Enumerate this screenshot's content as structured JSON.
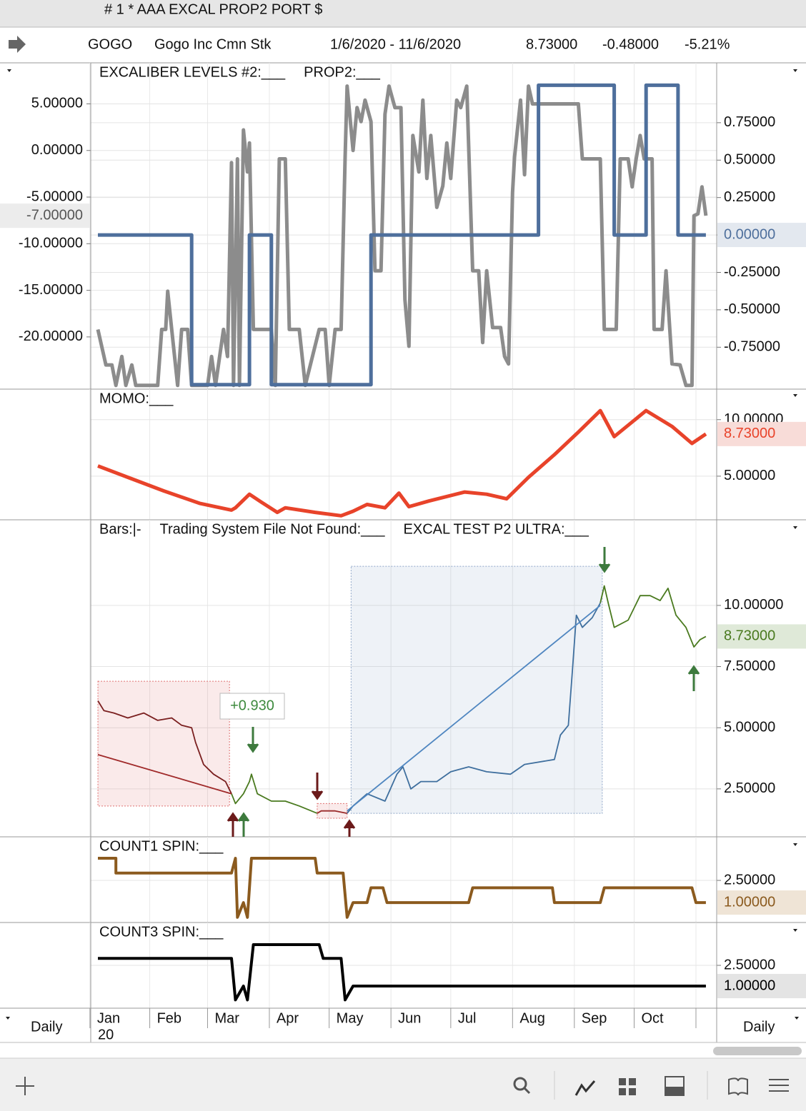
{
  "window": {
    "title": "# 1 * AAA EXCAL PROP2 PORT $"
  },
  "symbol_bar": {
    "symbol": "GOGO",
    "name": "Gogo Inc Cmn Stk",
    "range": "1/6/2020 - 11/6/2020",
    "last": "8.73000",
    "change": "-0.48000",
    "change_pct": "-5.21%"
  },
  "time_axis": {
    "xlim": [
      -3.6,
      310.4
    ],
    "xticks": [
      {
        "value": -4,
        "label": "Jan"
      },
      {
        "value": 26,
        "label": "Feb"
      },
      {
        "value": 55,
        "label": "Mar"
      },
      {
        "value": 86,
        "label": "Apr"
      },
      {
        "value": 116,
        "label": "May"
      },
      {
        "value": 147,
        "label": "Jun"
      },
      {
        "value": 177,
        "label": "Jul"
      },
      {
        "value": 208,
        "label": "Aug"
      },
      {
        "value": 239,
        "label": "Sep"
      },
      {
        "value": 269,
        "label": "Oct"
      },
      {
        "value": 300,
        "label": null
      }
    ],
    "year_label": "20",
    "period": "Daily"
  },
  "chart_data": [
    {
      "type": "line",
      "titles": [
        "EXCALIBER LEVELS #2:___",
        "PROP2:___"
      ],
      "yaxis": "left",
      "grid": true,
      "ylim": [
        -25.6,
        9.4
      ],
      "yticks": [
        {
          "value": 5,
          "label": "5.00000"
        },
        {
          "value": 0,
          "label": "0.00000"
        },
        {
          "value": -5,
          "label": "-5.00000"
        },
        {
          "value": -10,
          "label": "-10.00000"
        },
        {
          "value": -15,
          "label": "-15.00000"
        },
        {
          "value": -20,
          "label": "-20.00000"
        }
      ],
      "y2lim": [
        -1.03,
        1.15
      ],
      "y2ticks": [
        {
          "value": 0.75,
          "label": "0.75000"
        },
        {
          "value": 0.5,
          "label": "0.50000"
        },
        {
          "value": 0.25,
          "label": "0.25000"
        },
        {
          "value": 0,
          "label": "0.00000"
        },
        {
          "value": -0.25,
          "label": "-0.25000"
        },
        {
          "value": -0.5,
          "label": "-0.50000"
        },
        {
          "value": -0.75,
          "label": "-0.75000"
        }
      ],
      "series": [
        {
          "color": "#8c8c8c",
          "last_label": "-7.00000",
          "label_fill": "#ececec",
          "x": [
            0,
            4,
            7,
            9,
            12,
            14,
            17,
            19,
            30,
            32,
            34,
            35,
            37,
            40,
            42,
            45,
            47,
            55,
            57,
            59,
            63,
            65,
            67,
            68,
            70,
            71,
            73,
            74,
            75,
            76,
            78,
            87,
            89,
            91,
            94,
            96,
            101,
            104,
            111,
            114,
            116,
            119,
            122,
            124,
            125,
            128,
            130,
            132,
            134,
            137,
            139,
            142,
            144,
            146,
            149,
            152,
            154,
            156,
            158,
            161,
            163,
            165,
            167,
            170,
            173,
            175,
            177,
            180,
            182,
            185,
            188,
            191,
            193,
            195,
            198,
            202,
            204,
            206,
            208,
            209,
            212,
            214,
            216,
            218,
            241,
            243,
            252,
            254,
            260,
            262,
            266,
            268,
            270,
            272,
            274,
            278,
            279,
            283,
            285,
            288,
            292,
            295,
            298,
            299,
            301,
            303,
            305
          ],
          "values": [
            -19.2,
            -23.0,
            -23.0,
            -25.2,
            -22.1,
            -25.2,
            -23.0,
            -25.2,
            -25.2,
            -19.2,
            -19.2,
            -15.1,
            -19.2,
            -25.2,
            -19.2,
            -19.2,
            -25.2,
            -25.2,
            -22.1,
            -25.2,
            -19.2,
            -22.1,
            -1.3,
            -25.2,
            -0.9,
            -25.2,
            2.2,
            0.0,
            -2.3,
            0.8,
            -19.2,
            -19.2,
            -25.2,
            -0.9,
            -0.9,
            -19.2,
            -19.2,
            -25.2,
            -19.2,
            -19.2,
            -25.2,
            -19.2,
            -19.2,
            -0.7,
            6.9,
            0.0,
            4.6,
            3.1,
            5.4,
            3.1,
            -12.9,
            -12.9,
            3.9,
            6.9,
            4.6,
            4.6,
            -16.0,
            -21.0,
            1.6,
            -2.3,
            5.4,
            -3.0,
            1.6,
            -6.1,
            -3.8,
            0.8,
            -3.0,
            5.4,
            4.6,
            6.9,
            -12.9,
            -12.9,
            -20.6,
            -12.9,
            -19.0,
            -19.0,
            -22.1,
            -22.9,
            -4.5,
            -0.7,
            5.4,
            -2.6,
            6.9,
            5.0,
            5.0,
            -0.9,
            -0.9,
            -19.2,
            -19.2,
            -0.9,
            -0.9,
            -3.9,
            -0.9,
            1.6,
            -0.9,
            -0.9,
            -19.2,
            -19.2,
            -12.9,
            -22.9,
            -23.0,
            -25.2,
            -25.2,
            -7.0,
            -6.8,
            -3.9,
            -7.0
          ]
        },
        {
          "color": "#4e6f9c",
          "axis": "y2",
          "last_label": "0.00000",
          "label_fill": "#e3e8ef",
          "x": [
            0,
            47,
            47,
            76,
            76,
            87,
            87,
            137,
            137,
            221,
            221,
            259,
            259,
            275,
            275,
            291,
            291,
            305
          ],
          "values": [
            0,
            0,
            -1,
            -1,
            0,
            0,
            -1,
            -1,
            0,
            0,
            1,
            1,
            0,
            0,
            1,
            1,
            0,
            0
          ]
        }
      ]
    },
    {
      "type": "line",
      "titles": [
        "MOMO:___"
      ],
      "yaxis": "right",
      "grid": true,
      "ylim": [
        1.14,
        12.7
      ],
      "yticks": [
        {
          "value": 10,
          "label": "10.00000"
        },
        {
          "value": 5,
          "label": "5.00000"
        }
      ],
      "series": [
        {
          "color": "#e8432a",
          "last_label": "8.73000",
          "label_fill": "#f8dcd8",
          "x": [
            0,
            15,
            33,
            51,
            67,
            69,
            76,
            82,
            90,
            94,
            109,
            122,
            128,
            135,
            144,
            151,
            156,
            166,
            184,
            195,
            205,
            216,
            229,
            241,
            252,
            259,
            275,
            288,
            298,
            305
          ],
          "values": [
            5.9,
            4.9,
            3.7,
            2.6,
            2.0,
            2.2,
            3.4,
            2.7,
            1.8,
            2.2,
            1.8,
            1.5,
            1.9,
            2.5,
            2.2,
            3.5,
            2.3,
            2.8,
            3.6,
            3.4,
            3.0,
            4.9,
            6.9,
            8.9,
            10.8,
            8.5,
            10.8,
            9.4,
            7.9,
            8.73
          ]
        }
      ]
    },
    {
      "type": "line",
      "titles": [
        "Bars:|-",
        "Trading System File Not Found:___",
        "EXCAL TEST P2 ULTRA:___"
      ],
      "yaxis": "right",
      "grid": true,
      "ylim": [
        0.54,
        13.5
      ],
      "yticks": [
        {
          "value": 10,
          "label": "10.00000"
        },
        {
          "value": 7.5,
          "label": "7.50000"
        },
        {
          "value": 5,
          "label": "5.00000"
        },
        {
          "value": 2.5,
          "label": "2.50000"
        }
      ],
      "annotation": "+0.930",
      "boxes": [
        {
          "x": [
            0,
            66
          ],
          "y": [
            1.8,
            6.9
          ],
          "color": "#e07070"
        },
        {
          "x": [
            127,
            253
          ],
          "y": [
            1.5,
            11.6
          ],
          "color": "#8fa6c8"
        },
        {
          "x": [
            110,
            125
          ],
          "y": [
            1.3,
            1.9
          ],
          "color": "#e07070"
        }
      ],
      "series": [
        {
          "color": "#7a1f1f",
          "x": [
            0,
            3,
            8,
            15,
            23,
            30,
            37,
            42,
            47,
            49,
            53,
            58,
            64,
            67
          ],
          "values": [
            6.1,
            5.7,
            5.6,
            5.4,
            5.6,
            5.3,
            5.4,
            5.1,
            5.0,
            4.4,
            3.5,
            3.1,
            2.8,
            2.3
          ]
        },
        {
          "color": "#4a7a1f",
          "x": [
            67,
            69,
            73,
            76,
            77,
            80,
            87,
            94,
            101,
            110
          ],
          "values": [
            2.3,
            1.9,
            2.3,
            2.8,
            3.1,
            2.3,
            2.0,
            2.0,
            1.8,
            1.5
          ]
        },
        {
          "color": "#9a2a2a",
          "x": [
            110,
            112,
            119,
            125
          ],
          "values": [
            1.5,
            1.6,
            1.6,
            1.5
          ]
        },
        {
          "color": "#3f6f9e",
          "x": [
            125,
            128,
            135,
            144,
            150,
            153,
            157,
            162,
            170,
            177,
            186,
            195,
            207,
            214,
            229,
            232,
            236,
            238,
            240,
            243,
            248,
            252
          ],
          "values": [
            1.5,
            1.8,
            2.3,
            2.0,
            3.1,
            3.4,
            2.5,
            2.8,
            2.8,
            3.2,
            3.4,
            3.2,
            3.1,
            3.5,
            3.7,
            4.7,
            5.1,
            7.3,
            9.6,
            9.1,
            9.5,
            10.1
          ]
        },
        {
          "color": "#4a7a1f",
          "last_label": "8.73000",
          "label_fill": "#dfe9d8",
          "x": [
            252,
            254,
            256,
            259,
            266,
            272,
            277,
            282,
            286,
            290,
            295,
            299,
            302,
            305
          ],
          "values": [
            10.1,
            10.8,
            10.1,
            9.1,
            9.4,
            10.4,
            10.4,
            10.2,
            10.7,
            9.6,
            9.1,
            8.3,
            8.6,
            8.73
          ]
        },
        {
          "color": "#a02a2a",
          "x": [
            0,
            67
          ],
          "values": [
            3.9,
            2.3
          ]
        },
        {
          "color": "#4f86c0",
          "x": [
            125,
            252
          ],
          "values": [
            1.6,
            10.0
          ]
        }
      ]
    },
    {
      "type": "line",
      "titles": [
        "COUNT1 SPIN:___"
      ],
      "yaxis": "right",
      "grid": true,
      "ylim": [
        -0.35,
        5.45
      ],
      "yticks": [
        {
          "value": 2.5,
          "label": "2.50000"
        }
      ],
      "series": [
        {
          "color": "#8b5a1e",
          "last_label": "1.00000",
          "label_fill": "#efe4d6",
          "x": [
            0,
            9,
            9,
            67,
            69,
            70,
            73,
            75,
            77,
            109,
            110,
            123,
            125,
            128,
            135,
            137,
            143,
            145,
            186,
            188,
            228,
            229,
            252,
            254,
            298,
            300,
            305
          ],
          "values": [
            4,
            4,
            3,
            3,
            4,
            0,
            1,
            0,
            4,
            4,
            3,
            3,
            0,
            1,
            1,
            2,
            2,
            1,
            1,
            2,
            2,
            1,
            1,
            2,
            2,
            1,
            1
          ]
        }
      ]
    },
    {
      "type": "line",
      "titles": [
        "COUNT3 SPIN:___"
      ],
      "yaxis": "right",
      "grid": true,
      "ylim": [
        -0.6,
        5.6
      ],
      "yticks": [
        {
          "value": 2.5,
          "label": "2.50000"
        }
      ],
      "series": [
        {
          "color": "#000000",
          "last_label": "1.00000",
          "label_fill": "#e4e4e4",
          "x": [
            0,
            67,
            69,
            73,
            75,
            78,
            111,
            113,
            122,
            124,
            128,
            305
          ],
          "values": [
            3,
            3,
            0,
            1,
            0,
            4,
            4,
            3,
            3,
            0,
            1,
            1
          ]
        }
      ]
    }
  ]
}
